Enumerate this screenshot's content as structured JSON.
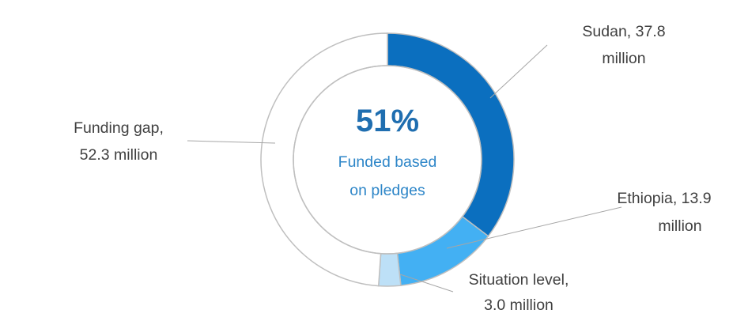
{
  "chart_data": {
    "type": "pie",
    "subtype": "donut",
    "center_value": "51%",
    "center_caption": [
      "Funded based",
      "on pledges"
    ],
    "slices": [
      {
        "label": "Sudan",
        "value": 37.8,
        "color": "#0B6FBF",
        "label_lines": [
          "Sudan, 37.8",
          "million"
        ]
      },
      {
        "label": "Ethiopia",
        "value": 13.9,
        "color": "#43B0F3",
        "label_lines": [
          "Ethiopia, 13.9",
          "million"
        ]
      },
      {
        "label": "Situation level",
        "value": 3.0,
        "color": "#BDE0F7",
        "label_lines": [
          "Situation level,",
          "3.0 million"
        ]
      },
      {
        "label": "Funding gap",
        "value": 52.3,
        "color": "#FFFFFF",
        "label_lines": [
          "Funding gap,",
          "52.3 million"
        ]
      }
    ],
    "legend": "none",
    "colors": {
      "accent_text": "#1F6EB0",
      "caption_text": "#2E86C8",
      "label_text": "#404040",
      "outline": "#BFBFBF"
    }
  }
}
